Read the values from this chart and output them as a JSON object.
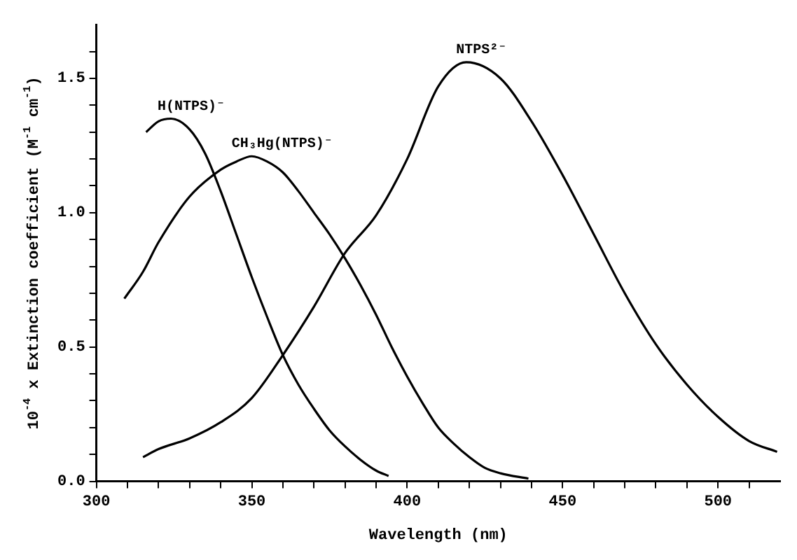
{
  "chart_data": {
    "type": "line",
    "xlabel": "Wavelength (nm)",
    "ylabel": "10$^{-4}$ x Extinction coefficient (M$^{-1}$ cm$^{-1}$)",
    "xlim": [
      300,
      520
    ],
    "ylim": [
      0,
      1.7
    ],
    "xticks": [
      300,
      {
        "value": 310,
        "label": null
      },
      {
        "value": 320,
        "label": null
      },
      {
        "value": 330,
        "label": null
      },
      {
        "value": 340,
        "label": null
      },
      350,
      {
        "value": 360,
        "label": null
      },
      {
        "value": 370,
        "label": null
      },
      {
        "value": 380,
        "label": null
      },
      {
        "value": 390,
        "label": null
      },
      400,
      {
        "value": 410,
        "label": null
      },
      {
        "value": 420,
        "label": null
      },
      {
        "value": 430,
        "label": null
      },
      {
        "value": 440,
        "label": null
      },
      450,
      {
        "value": 460,
        "label": null
      },
      {
        "value": 470,
        "label": null
      },
      {
        "value": 480,
        "label": null
      },
      {
        "value": 490,
        "label": null
      },
      500,
      {
        "value": 510,
        "label": null
      }
    ],
    "yticks": [
      {
        "value": 0,
        "label": "0.0"
      },
      {
        "value": 0.1,
        "label": null
      },
      {
        "value": 0.2,
        "label": null
      },
      {
        "value": 0.3,
        "label": null
      },
      {
        "value": 0.4,
        "label": null
      },
      {
        "value": 0.5,
        "label": "0.5"
      },
      {
        "value": 0.6,
        "label": null
      },
      {
        "value": 0.7,
        "label": null
      },
      {
        "value": 0.8,
        "label": null
      },
      {
        "value": 0.9,
        "label": null
      },
      {
        "value": 1.0,
        "label": "1.0"
      },
      {
        "value": 1.1,
        "label": null
      },
      {
        "value": 1.2,
        "label": null
      },
      {
        "value": 1.3,
        "label": null
      },
      {
        "value": 1.4,
        "label": null
      },
      {
        "value": 1.5,
        "label": "1.5"
      },
      {
        "value": 1.6,
        "label": null
      }
    ],
    "grid": false,
    "legend": false,
    "marker": "none",
    "line_style": "solid",
    "series": [
      {
        "name": "H(NTPS)⁻",
        "color": "#000000",
        "x": [
          316,
          320,
          324,
          330,
          335,
          340,
          345,
          350,
          355,
          360,
          365,
          370,
          375,
          380,
          385,
          390,
          394
        ],
        "values": [
          1.3,
          1.34,
          1.35,
          1.31,
          1.22,
          1.08,
          0.92,
          0.76,
          0.61,
          0.47,
          0.36,
          0.27,
          0.19,
          0.13,
          0.08,
          0.04,
          0.02
        ]
      },
      {
        "name": "CH₃Hg(NTPS)⁻",
        "color": "#000000",
        "x": [
          309,
          315,
          320,
          330,
          340,
          345,
          350,
          355,
          360,
          365,
          370,
          375,
          380,
          385,
          390,
          395,
          400,
          405,
          410,
          415,
          420,
          425,
          430,
          439
        ],
        "values": [
          0.68,
          0.78,
          0.89,
          1.06,
          1.16,
          1.19,
          1.21,
          1.19,
          1.15,
          1.08,
          1.0,
          0.92,
          0.83,
          0.73,
          0.62,
          0.5,
          0.39,
          0.29,
          0.2,
          0.14,
          0.09,
          0.05,
          0.03,
          0.01
        ]
      },
      {
        "name": "NTPS²⁻",
        "color": "#000000",
        "x": [
          315,
          320,
          330,
          340,
          350,
          360,
          370,
          380,
          390,
          400,
          410,
          419,
          430,
          440,
          450,
          460,
          470,
          480,
          490,
          500,
          510,
          519
        ],
        "values": [
          0.09,
          0.12,
          0.16,
          0.22,
          0.31,
          0.47,
          0.65,
          0.85,
          0.99,
          1.2,
          1.47,
          1.56,
          1.5,
          1.34,
          1.14,
          0.92,
          0.7,
          0.51,
          0.36,
          0.24,
          0.15,
          0.11
        ]
      }
    ]
  }
}
